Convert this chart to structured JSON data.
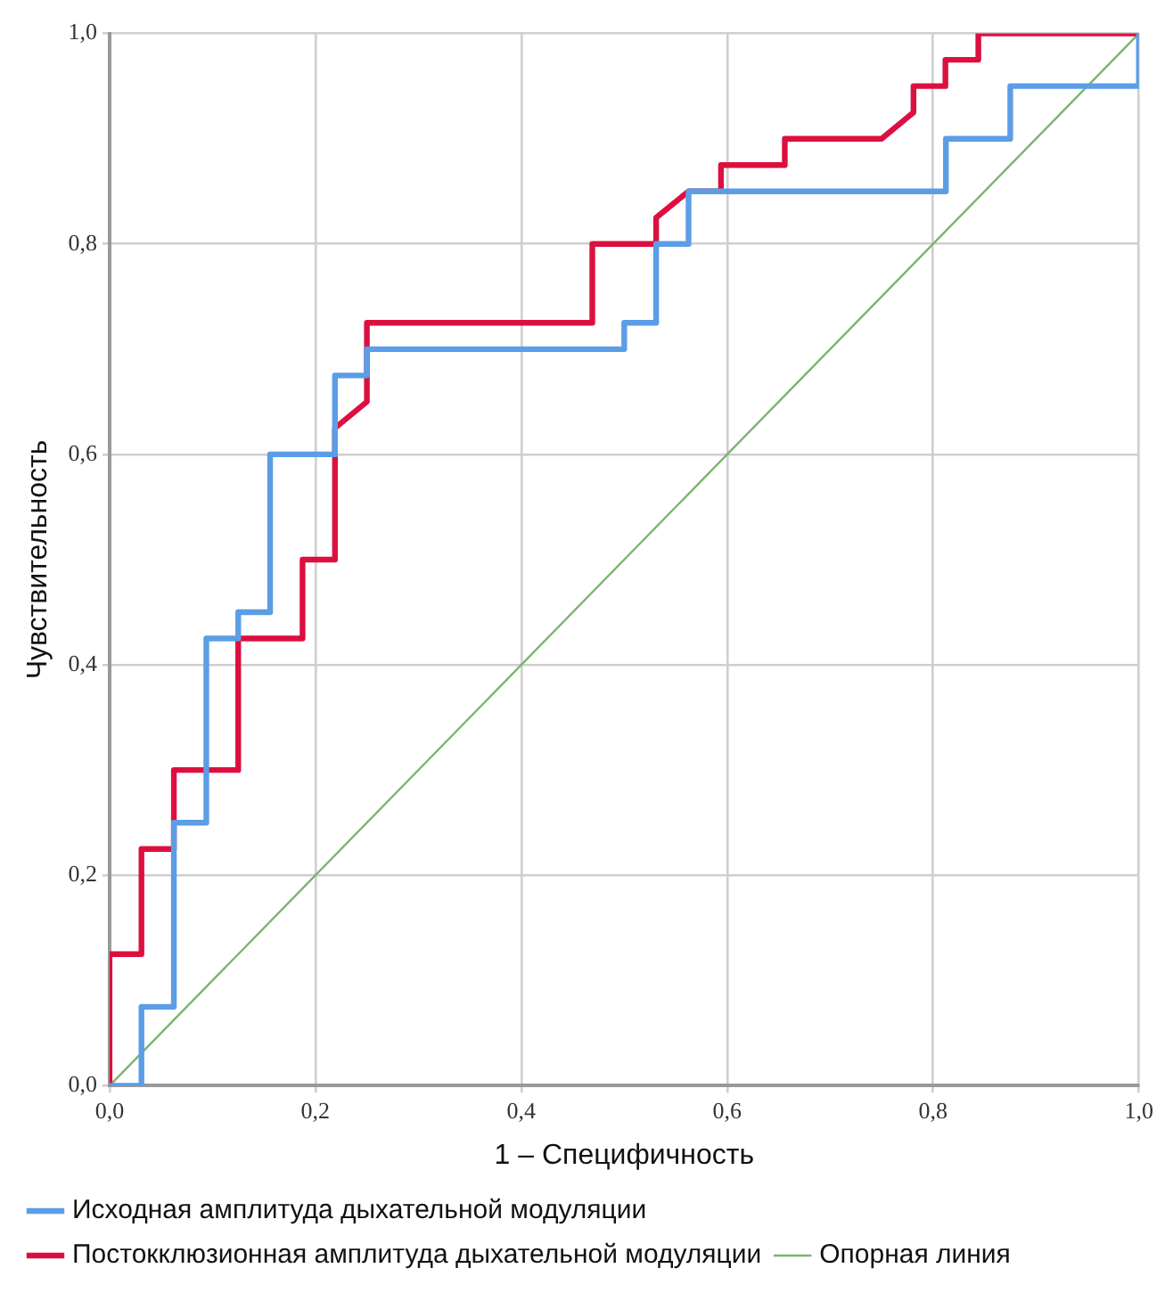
{
  "chart_data": {
    "type": "line",
    "xlabel": "1 – Специфичность",
    "ylabel": "Чувствительность",
    "series": [
      {
        "name": "Исходная амплитуда дыхательной модуляции",
        "color": "#5b9de6",
        "x": [
          0,
          0.031,
          0.031,
          0.0625,
          0.0625,
          0.094,
          0.094,
          0.125,
          0.125,
          0.156,
          0.156,
          0.219,
          0.219,
          0.25,
          0.25,
          0.5,
          0.5,
          0.531,
          0.531,
          0.5625,
          0.5625,
          0.8125,
          0.8125,
          0.875,
          0.875,
          1,
          1
        ],
        "values": [
          0,
          0,
          0.075,
          0.075,
          0.25,
          0.25,
          0.425,
          0.425,
          0.45,
          0.45,
          0.6,
          0.6,
          0.675,
          0.675,
          0.7,
          0.7,
          0.725,
          0.725,
          0.8,
          0.8,
          0.85,
          0.85,
          0.9,
          0.9,
          0.95,
          0.95,
          1
        ]
      },
      {
        "name": "Постокклюзионная амплитуда дыхательной модуляции",
        "color": "#dc1040",
        "x": [
          0,
          0,
          0.031,
          0.031,
          0.0625,
          0.0625,
          0.125,
          0.125,
          0.1875,
          0.1875,
          0.219,
          0.219,
          0.25,
          0.25,
          0.469,
          0.469,
          0.531,
          0.531,
          0.5625,
          0.594,
          0.594,
          0.656,
          0.656,
          0.75,
          0.781,
          0.781,
          0.812,
          0.812,
          0.844,
          0.844,
          1
        ],
        "values": [
          0,
          0.125,
          0.125,
          0.225,
          0.225,
          0.3,
          0.3,
          0.425,
          0.425,
          0.5,
          0.5,
          0.625,
          0.65,
          0.725,
          0.725,
          0.8,
          0.8,
          0.825,
          0.85,
          0.85,
          0.875,
          0.875,
          0.9,
          0.9,
          0.925,
          0.95,
          0.95,
          0.975,
          0.975,
          1,
          1
        ]
      },
      {
        "name": "Опорная линия",
        "color": "#7ab56e",
        "x": [
          0,
          1
        ],
        "values": [
          0,
          1
        ]
      }
    ],
    "xlim": [
      0,
      1
    ],
    "ylim": [
      0,
      1
    ],
    "xticks": [
      {
        "value": 0,
        "label": "0,0"
      },
      {
        "value": 0.2,
        "label": "0,2"
      },
      {
        "value": 0.4,
        "label": "0,4"
      },
      {
        "value": 0.6,
        "label": "0,6"
      },
      {
        "value": 0.8,
        "label": "0,8"
      },
      {
        "value": 1,
        "label": "1,0"
      }
    ],
    "yticks": [
      {
        "value": 0,
        "label": "0,0"
      },
      {
        "value": 0.2,
        "label": "0,2"
      },
      {
        "value": 0.4,
        "label": "0,4"
      },
      {
        "value": 0.6,
        "label": "0,6"
      },
      {
        "value": 0.8,
        "label": "0,8"
      },
      {
        "value": 1,
        "label": "1,0"
      }
    ],
    "grid": true,
    "legend": "bottom",
    "marker": "none",
    "line_style": "solid"
  }
}
